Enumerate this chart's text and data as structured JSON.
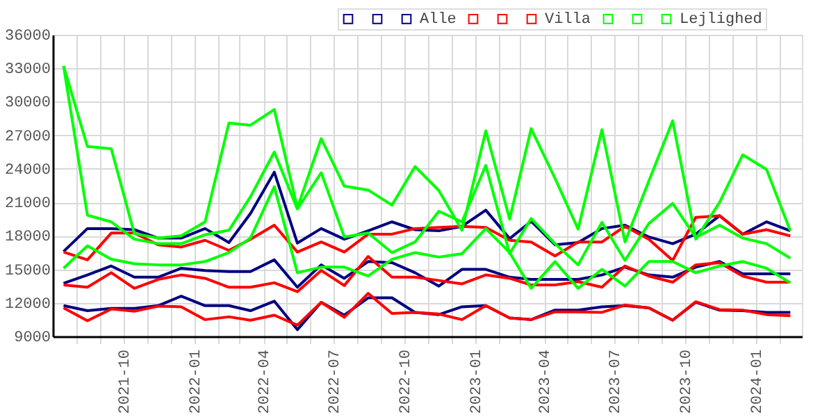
{
  "chart_data": {
    "type": "line",
    "x": [
      "2021-07-15",
      "2021-08-15",
      "2021-09-15",
      "2021-10-15",
      "2021-11-15",
      "2021-12-15",
      "2022-01-15",
      "2022-02-15",
      "2022-03-15",
      "2022-04-15",
      "2022-05-15",
      "2022-06-15",
      "2022-07-15",
      "2022-08-15",
      "2022-09-15",
      "2022-10-15",
      "2022-11-15",
      "2022-12-15",
      "2023-01-15",
      "2023-02-15",
      "2023-03-15",
      "2023-04-15",
      "2023-05-15",
      "2023-06-15",
      "2023-07-15",
      "2023-08-15",
      "2023-09-15",
      "2023-10-15",
      "2023-11-15",
      "2023-12-15",
      "2024-01-15",
      "2024-02-15"
    ],
    "series": [
      {
        "color": "#000080",
        "values": [
          11750,
          11300,
          11500,
          11500,
          11750,
          12600,
          11750,
          11750,
          11300,
          12150,
          9600,
          12050,
          10900,
          12450,
          12450,
          11150,
          10950,
          11650,
          11750,
          10650,
          10500,
          11350,
          11350,
          11650,
          11750,
          11550,
          10450,
          12050,
          11350,
          11300,
          11150,
          11150
        ]
      },
      {
        "color": "#000080",
        "values": [
          13750,
          14500,
          15300,
          14300,
          14300,
          15100,
          14900,
          14800,
          14800,
          15850,
          13400,
          15400,
          14200,
          15700,
          15600,
          14700,
          13500,
          15000,
          15000,
          14300,
          14100,
          14100,
          14100,
          14500,
          15200,
          14500,
          14300,
          15200,
          15700,
          14600,
          14600,
          14600
        ]
      },
      {
        "name": "Alle",
        "color": "#000080",
        "values": [
          16600,
          18650,
          18650,
          18550,
          17800,
          17800,
          18650,
          17400,
          20000,
          23700,
          17350,
          18650,
          17700,
          18450,
          19250,
          18550,
          18450,
          18850,
          20300,
          17750,
          19300,
          17200,
          17400,
          18650,
          18950,
          17900,
          17300,
          18150,
          19800,
          18150,
          19250,
          18450
        ]
      },
      {
        "color": "#ff0000",
        "values": [
          11550,
          10400,
          11450,
          11250,
          11700,
          11650,
          10500,
          10750,
          10450,
          10900,
          10000,
          12050,
          10700,
          12850,
          11050,
          11150,
          11000,
          10500,
          11750,
          10650,
          10500,
          11200,
          11200,
          11150,
          11800,
          11550,
          10450,
          12100,
          11400,
          11350,
          10950,
          10850
        ]
      },
      {
        "color": "#ff0000",
        "values": [
          13600,
          13400,
          14700,
          13300,
          14100,
          14500,
          14200,
          13400,
          13400,
          13800,
          13000,
          14900,
          13550,
          16150,
          14300,
          14300,
          14000,
          13700,
          14500,
          14200,
          13600,
          13600,
          13900,
          13400,
          15300,
          14400,
          13850,
          15400,
          15600,
          14400,
          13850,
          13850
        ]
      },
      {
        "name": "Villa",
        "color": "#ff0000",
        "values": [
          16550,
          15850,
          18250,
          18250,
          17200,
          17000,
          17600,
          16700,
          17700,
          18950,
          16550,
          17450,
          16550,
          18150,
          18150,
          18650,
          18750,
          18850,
          18750,
          17600,
          17450,
          16200,
          17450,
          17450,
          18850,
          17700,
          15800,
          19650,
          19800,
          18150,
          18550,
          18000
        ]
      },
      {
        "color": "#00ff00",
        "values": [
          15100,
          17100,
          15900,
          15500,
          15400,
          15400,
          15700,
          16500,
          17800,
          22400,
          14700,
          15200,
          15200,
          14400,
          15900,
          16500,
          16100,
          16400,
          18650,
          16500,
          13300,
          15700,
          13300,
          15000,
          13500,
          15700,
          15700,
          14700,
          15300,
          15700,
          15100,
          13800
        ]
      },
      {
        "color": "#00ff00",
        "values": [
          33200,
          19850,
          19250,
          17700,
          17300,
          17300,
          18100,
          18500,
          21500,
          25500,
          20400,
          23650,
          17900,
          18250,
          16500,
          17450,
          20200,
          19250,
          24300,
          16400,
          19550,
          17300,
          15400,
          19200,
          15800,
          19100,
          20900,
          17850,
          18950,
          17800,
          17300,
          16000
        ]
      },
      {
        "name": "Lejlighed",
        "color": "#00ff00",
        "values": [
          33200,
          26000,
          25800,
          18200,
          17800,
          18000,
          19250,
          28100,
          27900,
          29300,
          20500,
          26700,
          22450,
          22100,
          20750,
          24200,
          22050,
          18500,
          27400,
          19500,
          27600,
          23150,
          18600,
          27500,
          17450,
          22900,
          28300,
          17700,
          21000,
          25250,
          23950,
          18450
        ]
      }
    ],
    "xlim": [
      "2021-07-01",
      "2024-03-01"
    ],
    "xticks": [
      {
        "value": "2021-08-01",
        "label": null
      },
      {
        "value": "2021-09-01",
        "label": null
      },
      "2021-10",
      {
        "value": "2021-11-01",
        "label": null
      },
      {
        "value": "2021-12-01",
        "label": null
      },
      "2022-01",
      {
        "value": "2022-02-01",
        "label": null
      },
      {
        "value": "2022-03-01",
        "label": null
      },
      "2022-04",
      {
        "value": "2022-05-01",
        "label": null
      },
      {
        "value": "2022-06-01",
        "label": null
      },
      "2022-07",
      {
        "value": "2022-08-01",
        "label": null
      },
      {
        "value": "2022-09-01",
        "label": null
      },
      "2022-10",
      {
        "value": "2022-11-01",
        "label": null
      },
      {
        "value": "2022-12-01",
        "label": null
      },
      "2023-01",
      {
        "value": "2023-02-01",
        "label": null
      },
      {
        "value": "2023-03-01",
        "label": null
      },
      "2023-04",
      {
        "value": "2023-05-01",
        "label": null
      },
      {
        "value": "2023-06-01",
        "label": null
      },
      "2023-07",
      {
        "value": "2023-08-01",
        "label": null
      },
      {
        "value": "2023-09-01",
        "label": null
      },
      "2023-10",
      {
        "value": "2023-11-01",
        "label": null
      },
      {
        "value": "2023-12-01",
        "label": null
      },
      "2024-01",
      {
        "value": "2024-02-01",
        "label": null
      }
    ],
    "ylim": [
      9000,
      36000
    ],
    "yticks": [
      9000,
      12000,
      15000,
      18000,
      21000,
      24000,
      27000,
      30000,
      33000,
      36000
    ],
    "grid": true,
    "legend": "top right",
    "marker": "none",
    "line_style": "solid"
  }
}
